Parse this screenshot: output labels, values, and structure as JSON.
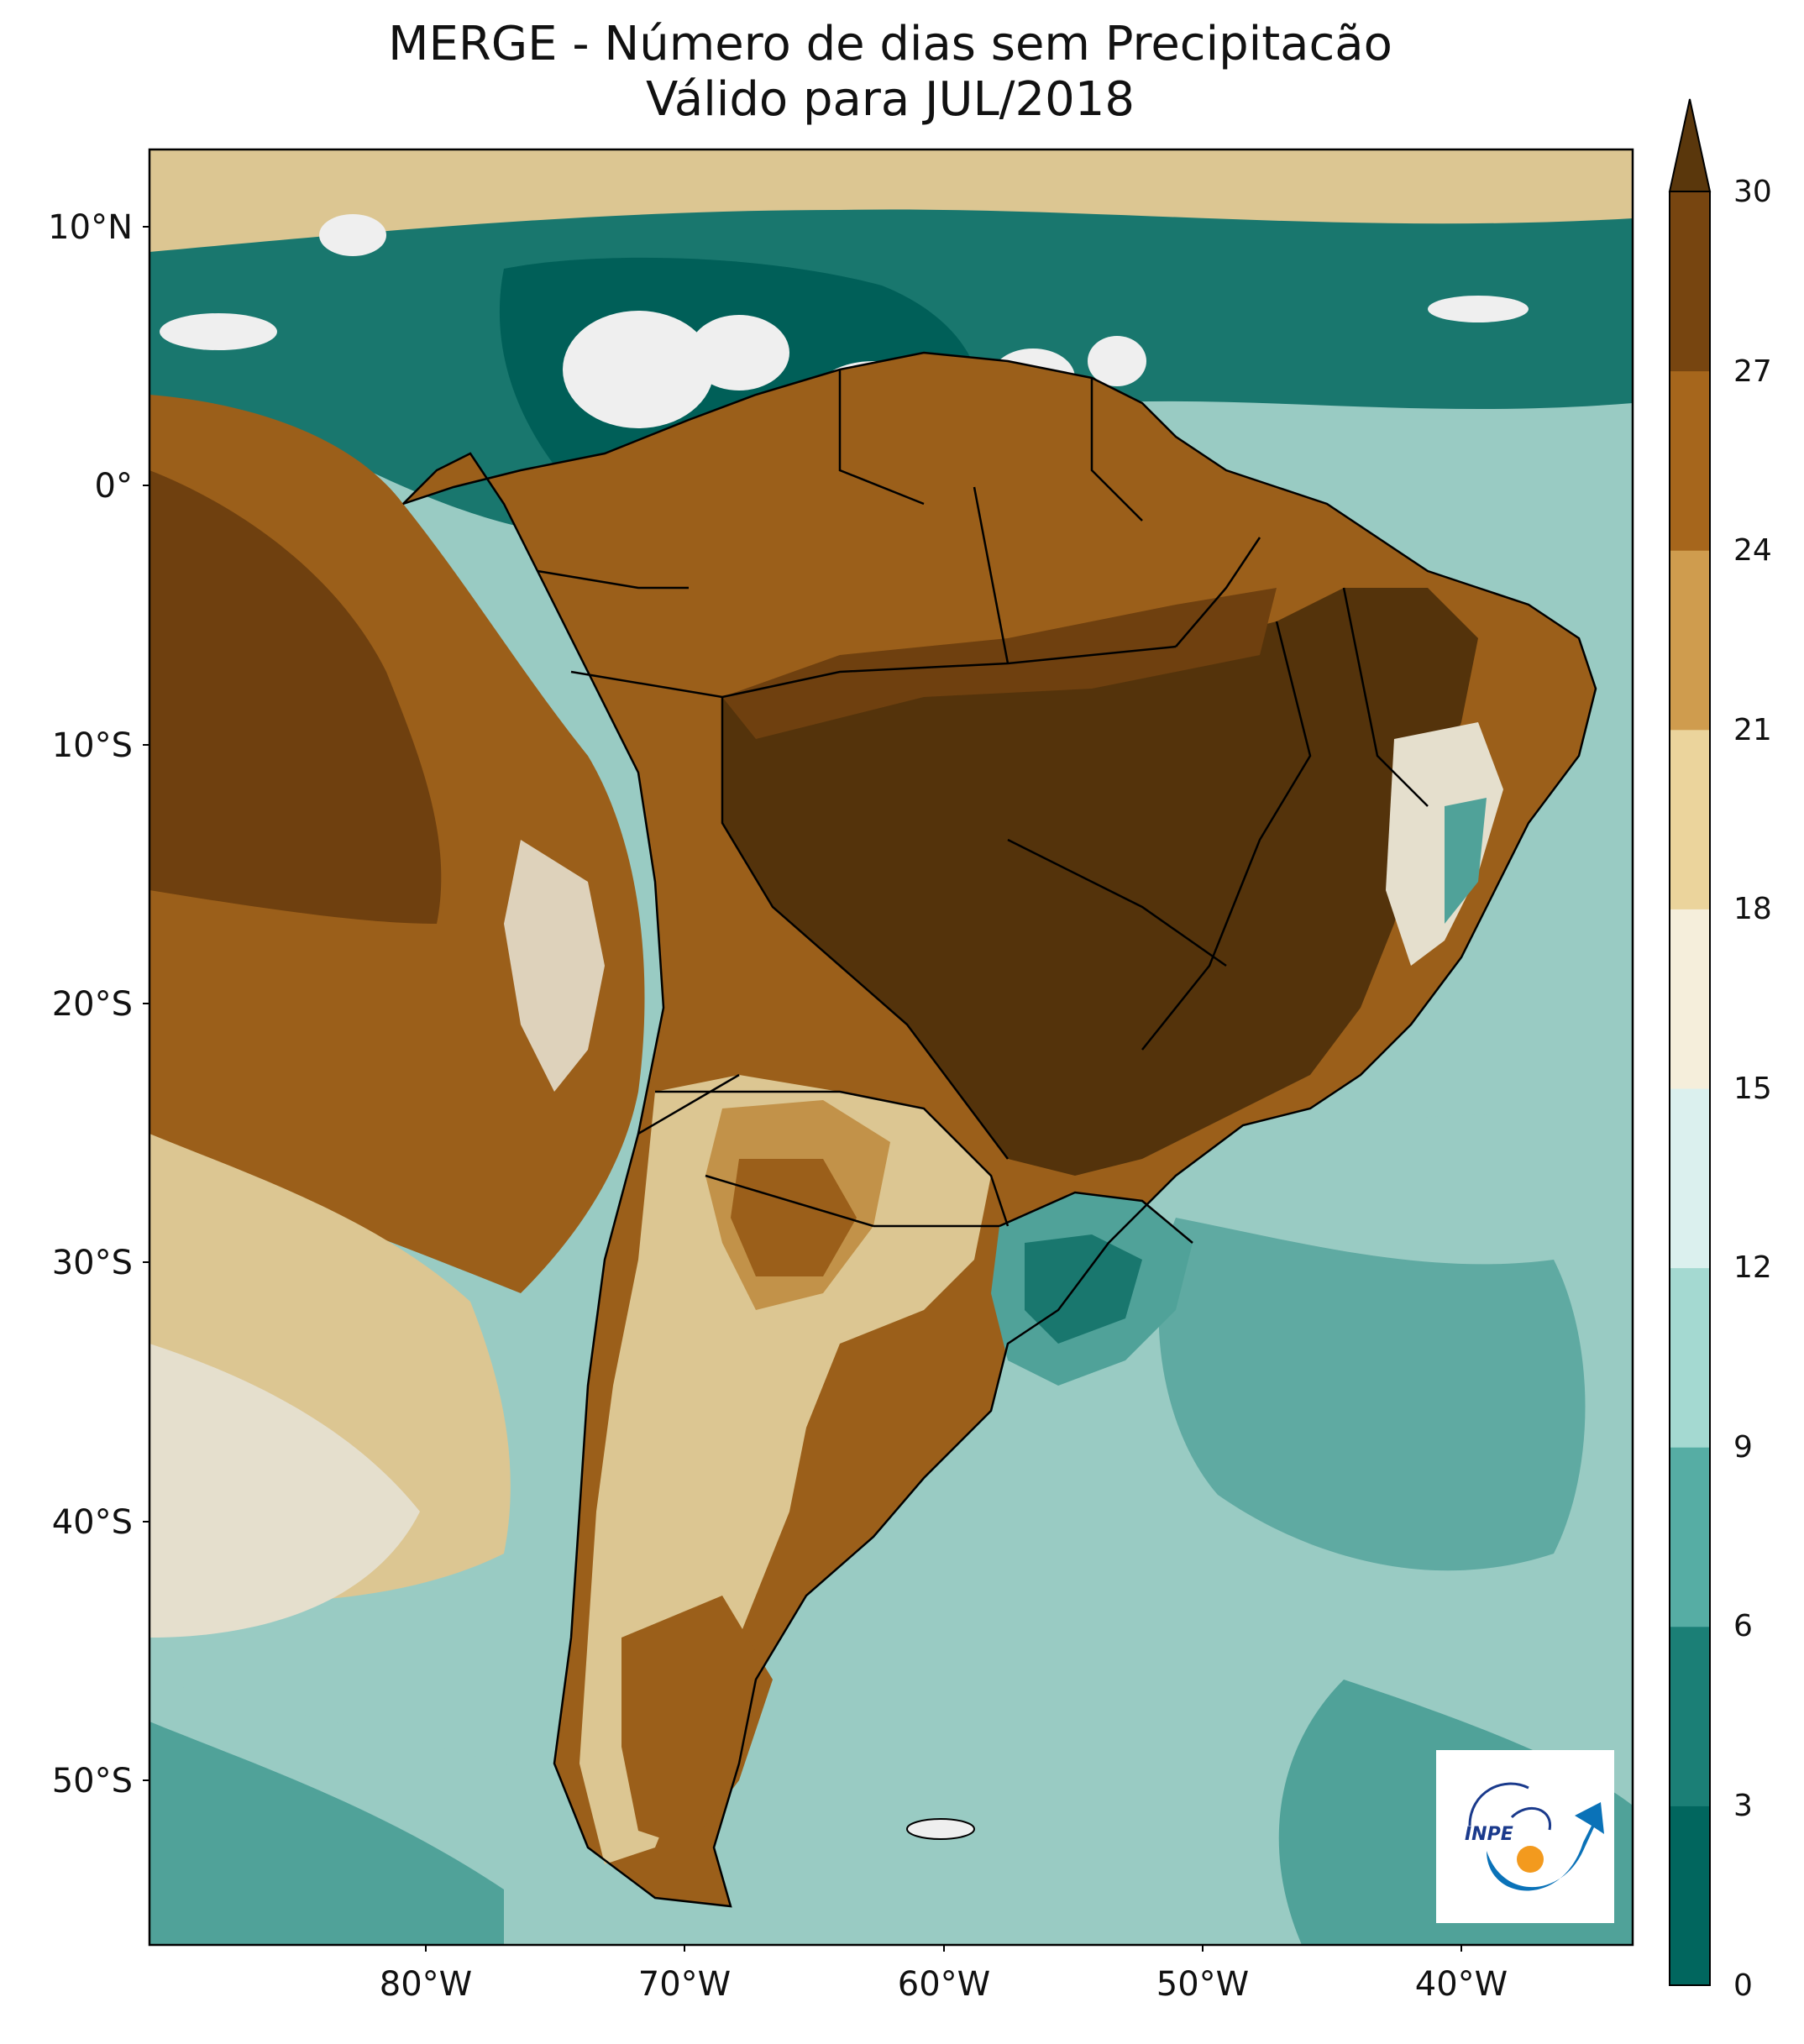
{
  "title": {
    "line1": "MERGE - Número de dias sem Precipitacão",
    "line2": "Válido para JUL/2018"
  },
  "axes": {
    "lat_labels": [
      "10°N",
      "0°",
      "10°S",
      "20°S",
      "30°S",
      "40°S",
      "50°S"
    ],
    "lon_labels": [
      "80°W",
      "70°W",
      "60°W",
      "50°W",
      "40°W"
    ]
  },
  "colorbar": {
    "labels": [
      "30",
      "27",
      "24",
      "21",
      "18",
      "15",
      "12",
      "9",
      "6",
      "3",
      "0"
    ],
    "colors": [
      "#01665e",
      "#1b7f76",
      "#56ada4",
      "#a4d9d1",
      "#dbf0ee",
      "#f5eedb",
      "#ebd49c",
      "#cf9c4e",
      "#a6661c",
      "#774510",
      "#5a370c"
    ],
    "extend": "max"
  },
  "logo": {
    "text": "INPE",
    "colors": {
      "arc": "#0a72b8",
      "dot": "#f39a1e"
    }
  },
  "map_palette": {
    "ocean_teal": "#1b7f76",
    "light": "#dbf0ee",
    "cream": "#f5eedb",
    "tan": "#ebd49c",
    "brown": "#a6661c",
    "dark_brown": "#5a370c",
    "border": "#000000"
  }
}
